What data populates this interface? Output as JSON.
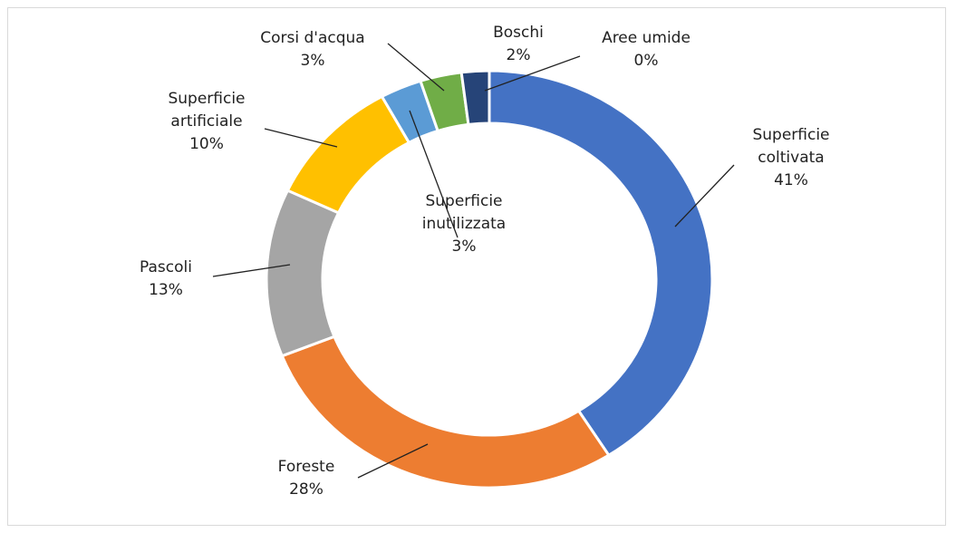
{
  "chart_data": {
    "type": "pie",
    "categories": [
      "Superficie coltivata",
      "Foreste",
      "Pascoli",
      "Superficie artificiale",
      "Superficie inutilizzata",
      "Corsi d'acqua",
      "Boschi",
      "Aree umide"
    ],
    "values": [
      41,
      28,
      13,
      10,
      3,
      3,
      2,
      0
    ],
    "value_labels": [
      "41%",
      "28%",
      "13%",
      "10%",
      "3%",
      "3%",
      "2%",
      "0%"
    ],
    "colors": [
      "#4472c4",
      "#ed7d31",
      "#a5a5a5",
      "#ffc000",
      "#5b9bd5",
      "#70ad47",
      "#264478",
      "#9e480e"
    ]
  }
}
